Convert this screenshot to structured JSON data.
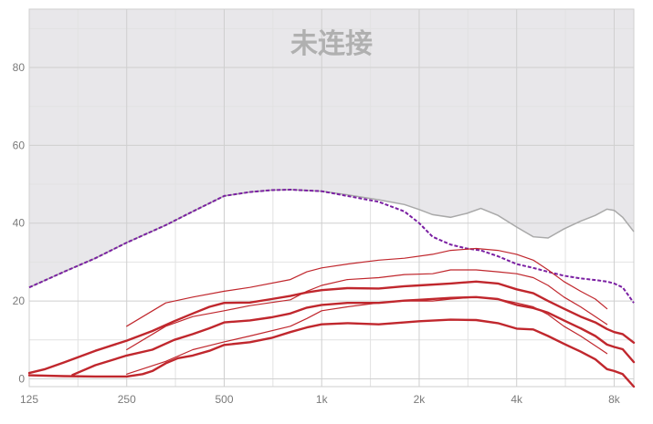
{
  "status_text": "未连接",
  "chart_data": {
    "type": "line",
    "xscale": "log",
    "xlim": [
      125,
      9200
    ],
    "ylim": [
      -2,
      95
    ],
    "grid": true,
    "x_ticks": [
      {
        "value": 125,
        "label": "125"
      },
      {
        "value": 250,
        "label": "250"
      },
      {
        "value": 500,
        "label": "500"
      },
      {
        "value": 1000,
        "label": "1k"
      },
      {
        "value": 2000,
        "label": "2k"
      },
      {
        "value": 4000,
        "label": "4k"
      },
      {
        "value": 8000,
        "label": "8k"
      }
    ],
    "y_ticks": [
      {
        "value": 0,
        "label": "0"
      },
      {
        "value": 20,
        "label": "20"
      },
      {
        "value": 40,
        "label": "40"
      },
      {
        "value": 60,
        "label": "60"
      },
      {
        "value": 80,
        "label": "80"
      }
    ],
    "colors": {
      "shade": "#e8e7ea",
      "grid": "#cfcfcf",
      "grid_minor": "#e2e2e2",
      "threshold": "#a9a9a9",
      "dashed": "#7a1fa2",
      "series": "#c0272d"
    },
    "shaded_region": {
      "description": "upper boundary area",
      "x": [
        125,
        160,
        200,
        250,
        330,
        400,
        500,
        600,
        700,
        800,
        1000,
        1200,
        1500,
        1800,
        2000,
        2200,
        2500,
        2800,
        3100,
        3500,
        4000,
        4500,
        5000,
        5600,
        6300,
        7000,
        7600,
        8000,
        8500,
        9200
      ],
      "y": [
        23.5,
        27.5,
        31,
        35,
        39.5,
        43,
        47,
        48,
        48.5,
        48.6,
        48.2,
        47.3,
        46,
        44.8,
        43.5,
        42.2,
        41.5,
        42.5,
        43.8,
        42,
        39,
        36.5,
        36.2,
        38.5,
        40.5,
        42,
        43.6,
        43.3,
        41.5,
        37.8
      ]
    },
    "dashed_line": {
      "x": [
        125,
        160,
        200,
        250,
        330,
        400,
        500,
        600,
        700,
        800,
        1000,
        1200,
        1500,
        1800,
        2000,
        2200,
        2500,
        2800,
        3100,
        3500,
        4000,
        4500,
        5000,
        5600,
        6300,
        7000,
        7600,
        8000,
        8500,
        9200
      ],
      "y": [
        23.5,
        27.5,
        31,
        35,
        39.5,
        43,
        47,
        48,
        48.5,
        48.6,
        48.2,
        47,
        45.5,
        43,
        40,
        36.5,
        34.5,
        33.5,
        33,
        31.5,
        29.5,
        28.5,
        27.5,
        26.5,
        25.8,
        25.4,
        25,
        24.5,
        23.5,
        19.5
      ]
    },
    "series": [
      {
        "width": 1.2,
        "x": [
          250,
          330,
          400,
          500,
          600,
          800,
          900,
          1000,
          1200,
          1500,
          1800,
          2200,
          2500,
          3000,
          3500,
          4000,
          4500,
          5000,
          5600,
          6300,
          7000,
          7600
        ],
        "y": [
          13.5,
          19.5,
          21,
          22.5,
          23.5,
          25.5,
          27.5,
          28.5,
          29.5,
          30.5,
          31,
          32,
          33,
          33.5,
          33,
          32,
          30.5,
          28,
          25,
          22.5,
          20.5,
          18
        ]
      },
      {
        "width": 1.2,
        "x": [
          250,
          330,
          400,
          500,
          600,
          800,
          900,
          1000,
          1200,
          1500,
          1800,
          2200,
          2500,
          3000,
          3500,
          4000,
          4500,
          5000,
          5600,
          6300,
          7000,
          7600
        ],
        "y": [
          7.5,
          13.5,
          16,
          17.5,
          18.8,
          20.3,
          22.5,
          24,
          25.5,
          26,
          26.8,
          27,
          28,
          28,
          27.5,
          27,
          26,
          24,
          21,
          18.5,
          16,
          14
        ]
      },
      {
        "width": 1.2,
        "x": [
          250,
          330,
          400,
          500,
          600,
          800,
          900,
          1000,
          1200,
          1500,
          1800,
          2200,
          2500,
          3000,
          3500,
          4000,
          4500,
          5000,
          5600,
          6300,
          7000,
          7600
        ],
        "y": [
          1.2,
          4.5,
          7.5,
          9.5,
          11,
          13.5,
          15.5,
          17.5,
          18.5,
          19.5,
          20,
          20,
          20.5,
          21,
          20.5,
          19.5,
          18.5,
          16.5,
          13.5,
          11,
          8.5,
          6.5
        ]
      },
      {
        "width": 2.4,
        "x": [
          125,
          140,
          160,
          200,
          250,
          300,
          350,
          400,
          450,
          500,
          600,
          700,
          800,
          900,
          1000,
          1200,
          1500,
          1800,
          2000,
          2500,
          3000,
          3500,
          4000,
          4500,
          5000,
          5600,
          6300,
          7000,
          7600,
          8000,
          8500,
          9200
        ],
        "y": [
          1.5,
          2.5,
          4.2,
          7.2,
          9.8,
          12.3,
          14.8,
          16.8,
          18.5,
          19.5,
          19.6,
          20.5,
          21.3,
          22.2,
          22.8,
          23.3,
          23.2,
          23.8,
          24,
          24.5,
          25,
          24.5,
          23,
          22,
          20,
          18,
          16,
          14.5,
          12.8,
          12,
          11.5,
          9.3
        ]
      },
      {
        "width": 2.4,
        "x": [
          170,
          200,
          250,
          300,
          350,
          400,
          450,
          500,
          600,
          700,
          800,
          900,
          1000,
          1200,
          1500,
          1800,
          2000,
          2500,
          3000,
          3500,
          4000,
          4500,
          5000,
          5600,
          6300,
          7000,
          7600,
          8000,
          8500,
          9200
        ],
        "y": [
          1,
          3.5,
          6,
          7.5,
          10,
          11.5,
          13,
          14.5,
          15,
          15.8,
          16.8,
          18.3,
          19,
          19.5,
          19.5,
          20.1,
          20.3,
          20.8,
          21,
          20.5,
          19,
          18.2,
          17,
          15,
          13,
          11,
          8.8,
          8.2,
          7.6,
          4.3
        ]
      },
      {
        "width": 2.4,
        "x": [
          125,
          160,
          200,
          250,
          280,
          300,
          330,
          360,
          400,
          450,
          500,
          600,
          700,
          800,
          900,
          1000,
          1200,
          1500,
          1800,
          2000,
          2500,
          3000,
          3500,
          4000,
          4500,
          5000,
          5600,
          6300,
          7000,
          7600,
          8000,
          8500,
          9200
        ],
        "y": [
          0.9,
          0.7,
          0.6,
          0.6,
          1.2,
          2,
          4,
          5.3,
          6,
          7.2,
          8.7,
          9.4,
          10.5,
          12,
          13.2,
          14,
          14.3,
          14,
          14.5,
          14.8,
          15.2,
          15.1,
          14.3,
          12.9,
          12.7,
          11,
          9,
          7,
          5,
          2.5,
          2,
          1.2,
          -2
        ]
      }
    ]
  }
}
